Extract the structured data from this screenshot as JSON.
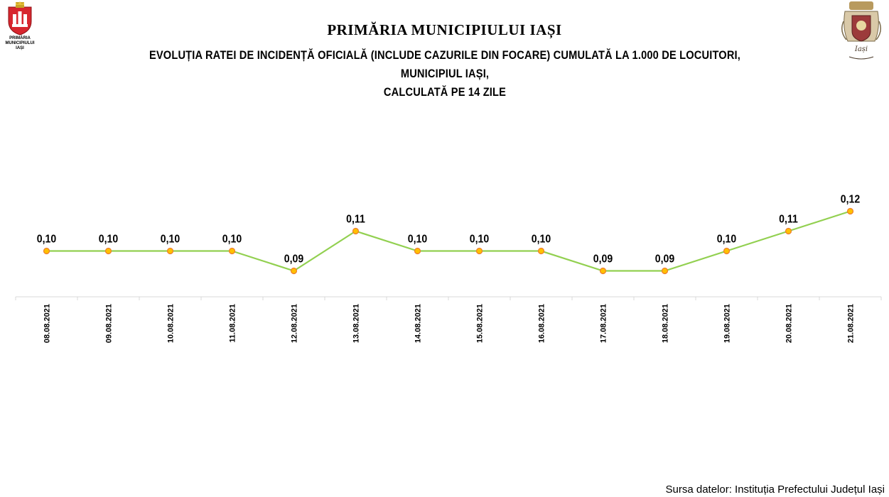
{
  "logo_left": {
    "caption": "PRIMĂRIA\nMUNICIPIULUI\nIAȘI"
  },
  "logo_right": {
    "caption": "Iași"
  },
  "header": {
    "title": "PRIMĂRIA MUNICIPIULUI IAȘI",
    "subtitle_line1": "EVOLUȚIA RATEI DE INCIDENȚĂ OFICIALĂ (INCLUDE CAZURILE DIN FOCARE) CUMULATĂ LA 1.000 DE LOCUITORI, MUNICIPIUL IAȘI,",
    "subtitle_line2": "CALCULATĂ PE 14 ZILE"
  },
  "chart_data": {
    "type": "line",
    "categories": [
      "08.08.2021",
      "09.08.2021",
      "10.08.2021",
      "11.08.2021",
      "12.08.2021",
      "13.08.2021",
      "14.08.2021",
      "15.08.2021",
      "16.08.2021",
      "17.08.2021",
      "18.08.2021",
      "19.08.2021",
      "20.08.2021",
      "21.08.2021"
    ],
    "values": [
      0.1,
      0.1,
      0.1,
      0.1,
      0.09,
      0.11,
      0.1,
      0.1,
      0.1,
      0.09,
      0.09,
      0.1,
      0.11,
      0.12
    ],
    "value_labels": [
      "0,10",
      "0,10",
      "0,10",
      "0,10",
      "0,09",
      "0,11",
      "0,10",
      "0,10",
      "0,10",
      "0,09",
      "0,09",
      "0,10",
      "0,11",
      "0,12"
    ],
    "ylim": [
      0,
      0.12
    ],
    "grid": false,
    "legend": "none",
    "line_color": "#92d050",
    "marker_fill": "#ffc000",
    "marker_stroke": "#ed7d31"
  },
  "footer": {
    "source": "Sursa datelor: Instituția Prefectului Județul Iași"
  }
}
